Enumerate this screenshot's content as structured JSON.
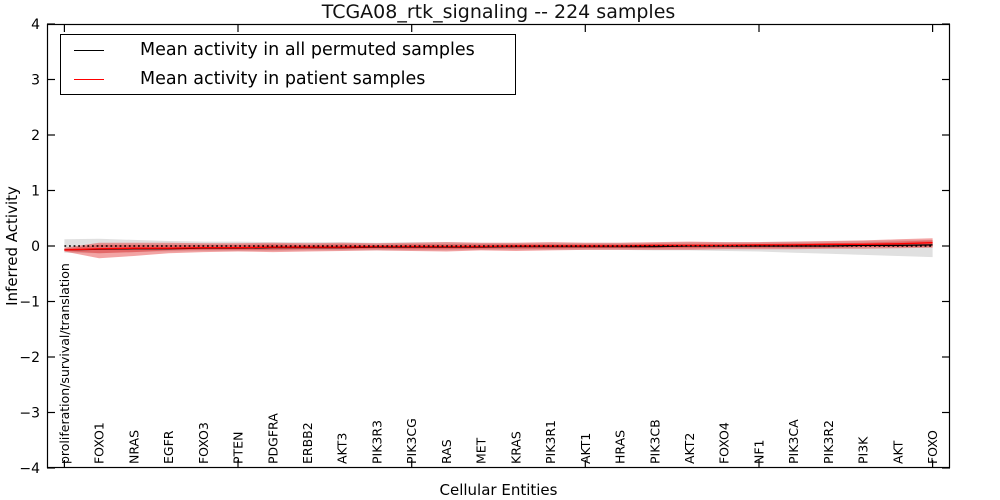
{
  "chart_data": {
    "type": "line",
    "title": "TCGA08_rtk_signaling -- 224 samples",
    "xlabel": "Cellular Entities",
    "ylabel": "Inferred Activity",
    "ylim": [
      -4,
      4
    ],
    "ytick_labels": [
      "4",
      "3",
      "2",
      "1",
      "0",
      "−1",
      "−2",
      "−3",
      "−4"
    ],
    "ytick_values": [
      4,
      3,
      2,
      1,
      0,
      -1,
      -2,
      -3,
      -4
    ],
    "xtick_major_indices": [
      0,
      5,
      10,
      15,
      20,
      25
    ],
    "grid": false,
    "legend_position": "upper left",
    "categories": [
      "proliferation/survival/translation",
      "FOXO1",
      "NRAS",
      "EGFR",
      "FOXO3",
      "PTEN",
      "PDGFRA",
      "ERBB2",
      "AKT3",
      "PIK3R3",
      "PIK3CG",
      "RAS",
      "MET",
      "KRAS",
      "PIK3R1",
      "AKT1",
      "HRAS",
      "PIK3CB",
      "AKT2",
      "FOXO4",
      "NF1",
      "PIK3CA",
      "PIK3R2",
      "PI3K",
      "AKT",
      "FOXO"
    ],
    "series": [
      {
        "name": "Mean activity in all permuted samples",
        "color": "#000000",
        "style": "solid",
        "values": [
          -0.07,
          -0.06,
          -0.05,
          -0.05,
          -0.04,
          -0.04,
          -0.03,
          -0.03,
          -0.03,
          -0.02,
          -0.02,
          -0.02,
          -0.02,
          -0.01,
          -0.01,
          -0.01,
          -0.01,
          -0.01,
          0.0,
          0.0,
          0.0,
          0.0,
          0.0,
          0.01,
          0.01,
          0.02
        ]
      },
      {
        "name": "Mean activity in patient samples",
        "color": "#ff0000",
        "style": "solid",
        "values": [
          -0.07,
          -0.05,
          -0.04,
          -0.04,
          -0.03,
          -0.03,
          -0.02,
          -0.02,
          -0.02,
          -0.01,
          -0.01,
          -0.01,
          -0.01,
          0.0,
          0.0,
          0.0,
          0.0,
          0.01,
          0.01,
          0.01,
          0.02,
          0.02,
          0.03,
          0.03,
          0.04,
          0.06
        ]
      }
    ],
    "bands": [
      {
        "name": "permuted-samples-std-band",
        "color": "#000000",
        "opacity": 0.12,
        "lo": [
          -0.12,
          -0.13,
          -0.11,
          -0.1,
          -0.09,
          -0.09,
          -0.09,
          -0.08,
          -0.08,
          -0.08,
          -0.08,
          -0.08,
          -0.07,
          -0.07,
          -0.07,
          -0.07,
          -0.07,
          -0.08,
          -0.08,
          -0.09,
          -0.1,
          -0.12,
          -0.14,
          -0.16,
          -0.18,
          -0.2
        ],
        "hi": [
          0.12,
          0.13,
          0.11,
          0.09,
          0.08,
          0.08,
          0.07,
          0.07,
          0.07,
          0.06,
          0.07,
          0.07,
          0.06,
          0.06,
          0.06,
          0.06,
          0.06,
          0.06,
          0.07,
          0.07,
          0.07,
          0.08,
          0.08,
          0.09,
          0.1,
          0.11
        ]
      },
      {
        "name": "patient-samples-std-outer-band",
        "color": "#e53535",
        "opacity": 0.45,
        "lo": [
          -0.1,
          -0.22,
          -0.18,
          -0.13,
          -0.11,
          -0.1,
          -0.11,
          -0.1,
          -0.09,
          -0.08,
          -0.09,
          -0.1,
          -0.08,
          -0.09,
          -0.08,
          -0.07,
          -0.07,
          -0.07,
          -0.07,
          -0.06,
          -0.06,
          -0.06,
          -0.05,
          -0.05,
          -0.04,
          -0.03
        ],
        "hi": [
          -0.03,
          0.06,
          0.06,
          0.06,
          0.05,
          0.05,
          0.06,
          0.05,
          0.06,
          0.05,
          0.06,
          0.07,
          0.06,
          0.06,
          0.07,
          0.06,
          0.06,
          0.07,
          0.08,
          0.07,
          0.07,
          0.08,
          0.09,
          0.1,
          0.12,
          0.14
        ]
      },
      {
        "name": "patient-samples-std-inner-band",
        "color": "#e53535",
        "opacity": 0.45,
        "lo": [
          -0.09,
          -0.13,
          -0.11,
          -0.08,
          -0.07,
          -0.07,
          -0.07,
          -0.06,
          -0.06,
          -0.05,
          -0.06,
          -0.06,
          -0.05,
          -0.05,
          -0.05,
          -0.04,
          -0.04,
          -0.04,
          -0.04,
          -0.03,
          -0.03,
          -0.03,
          -0.03,
          -0.02,
          -0.02,
          -0.01
        ],
        "hi": [
          -0.05,
          0.02,
          0.02,
          0.02,
          0.02,
          0.02,
          0.03,
          0.02,
          0.03,
          0.02,
          0.03,
          0.03,
          0.03,
          0.03,
          0.03,
          0.03,
          0.03,
          0.04,
          0.04,
          0.04,
          0.04,
          0.05,
          0.05,
          0.06,
          0.08,
          0.1
        ]
      }
    ],
    "zero_line": {
      "y": 0,
      "style": "dotted",
      "color": "#000000"
    }
  }
}
